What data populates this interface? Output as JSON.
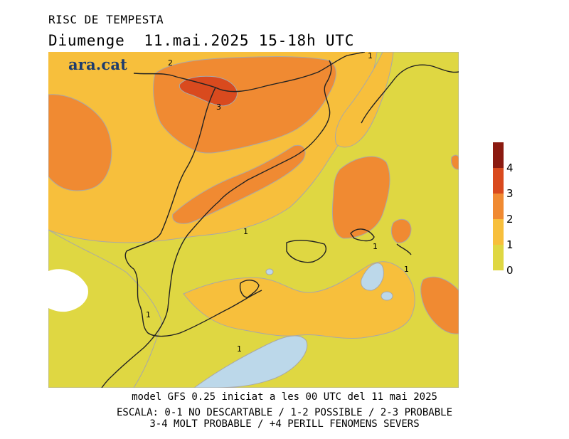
{
  "header": {
    "title": "RISC DE TEMPESTA",
    "subtitle": "Diumenge  11.mai.2025 15-18h UTC"
  },
  "logo": {
    "text": "ara.cat"
  },
  "map": {
    "contour_labels": [
      "2",
      "3",
      "1",
      "1",
      "1",
      "1",
      "1",
      "1"
    ]
  },
  "legend": {
    "levels": [
      {
        "label": "4",
        "color": "#8b1a10"
      },
      {
        "label": "3",
        "color": "#d94a1e"
      },
      {
        "label": "2",
        "color": "#f08a32"
      },
      {
        "label": "1",
        "color": "#f7bf3c"
      },
      {
        "label": "0",
        "color": "#dfd742"
      }
    ],
    "tick_labels": [
      "4",
      "3",
      "2",
      "1",
      "0"
    ]
  },
  "footer": {
    "line1": "model GFS 0.25 iniciat a les 00 UTC del 11 mai 2025",
    "line2": "ESCALA: 0-1 NO DESCARTABLE / 1-2 POSSIBLE / 2-3 PROBABLE",
    "line3": "3-4 MOLT PROBABLE / +4 PERILL FENOMENS SEVERS"
  },
  "colors": {
    "level_0_1": "#dfd742",
    "level_1_2": "#f7bf3c",
    "level_2_3": "#f08a32",
    "level_3_4": "#d94a1e",
    "level_4_plus": "#8b1a10",
    "water": "#bcd8ea",
    "border": "#222222"
  }
}
